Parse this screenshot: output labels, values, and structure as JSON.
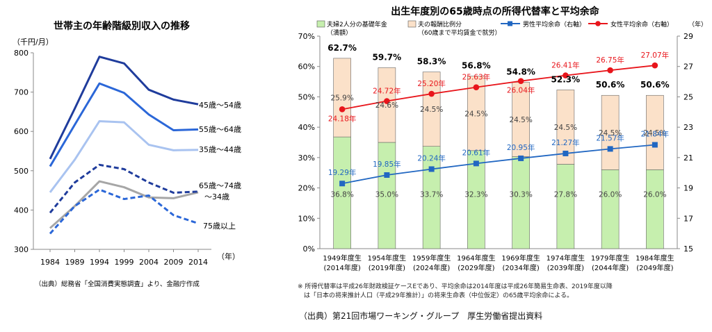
{
  "left_chart": {
    "title": "世帯主の年齢階級別収入の推移",
    "unit": "（千円/月）",
    "x_unit": "（年）",
    "source": "（出典）総務省「全国消費実態調査」より、金融庁作成",
    "chart_data": {
      "type": "line",
      "title": "世帯主の年齢階級別収入の推移",
      "ylabel": "（千円/月）",
      "xlabel": "（年）",
      "x": [
        "1984",
        "1989",
        "1994",
        "1999",
        "2004",
        "2009",
        "2014"
      ],
      "ylim": [
        300,
        800
      ],
      "yticks": [
        300,
        400,
        500,
        600,
        700,
        800
      ],
      "grid": false,
      "series": [
        {
          "name": "45歳～54歳",
          "color": "#1f3c9c",
          "dash": false,
          "values": [
            530,
            658,
            790,
            773,
            706,
            681,
            669
          ]
        },
        {
          "name": "55歳～64歳",
          "color": "#2b67d8",
          "dash": false,
          "values": [
            511,
            617,
            722,
            698,
            643,
            603,
            605
          ]
        },
        {
          "name": "35歳～44歳",
          "color": "#a9c3f0",
          "dash": false,
          "values": [
            445,
            528,
            626,
            623,
            566,
            552,
            553
          ]
        },
        {
          "name": "65歳～74歳",
          "color": "#1f3c9c",
          "dash": true,
          "values": [
            393,
            470,
            515,
            504,
            470,
            444,
            447
          ]
        },
        {
          "name": "～34歳",
          "color": "#a6a6a6",
          "dash": false,
          "values": [
            354,
            410,
            473,
            458,
            432,
            430,
            445
          ]
        },
        {
          "name": "75歳以上",
          "color": "#2b67d8",
          "dash": true,
          "values": [
            340,
            410,
            452,
            428,
            437,
            387,
            366
          ]
        }
      ]
    }
  },
  "right_chart": {
    "title": "出生年度別の65歳時点の所得代替率と平均余命",
    "legend": {
      "basic": "夫婦2人分の基礎年金",
      "basic_sub": "（満額）",
      "earnings": "夫の報酬比例分",
      "earnings_sub": "（60歳まで平均賃金で就労）",
      "male": "男性平均余命（右軸）",
      "female": "女性平均余命（右軸）"
    },
    "right_unit": "（年）",
    "footnote_1": "※ 所得代替率は平成26年財政検証ケースEであり、平均余命は2014年度は平成26年簡易生命表、2019年度以降",
    "footnote_2": "は「日本の将来推計人口（平成29年推計）」の将来生命表（中位仮定）の65歳平均余命による。",
    "source": "（出典）第21回市場ワーキング・グループ　厚生労働省提出資料",
    "chart_data": {
      "type": "bar",
      "title": "出生年度別の65歳時点の所得代替率と平均余命",
      "categories": [
        "1949年度生",
        "1954年度生",
        "1959年度生",
        "1964年度生",
        "1969年度生",
        "1974年度生",
        "1979年度生",
        "1984年度生"
      ],
      "sub_categories": [
        "(2014年度)",
        "(2019年度)",
        "(2024年度)",
        "(2029年度)",
        "(2034年度)",
        "(2039年度)",
        "(2044年度)",
        "(2049年度)"
      ],
      "ylim": [
        0,
        70
      ],
      "yticks": [
        "0%",
        "10%",
        "20%",
        "30%",
        "40%",
        "50%",
        "60%",
        "70%"
      ],
      "y2lim": [
        15,
        29
      ],
      "y2ticks": [
        "15",
        "17",
        "19",
        "21",
        "23",
        "25",
        "27",
        "29"
      ],
      "stacked": true,
      "totals": [
        "62.7%",
        "59.7%",
        "58.3%",
        "56.8%",
        "54.8%",
        "52.3%",
        "50.6%",
        "50.6%"
      ],
      "series": [
        {
          "name": "夫婦2人分の基礎年金",
          "color": "#c6efae",
          "axis": "left",
          "values": [
            36.8,
            35.0,
            33.7,
            32.3,
            30.3,
            27.8,
            26.0,
            26.0
          ],
          "labels": [
            "36.8%",
            "35.0%",
            "33.7%",
            "32.3%",
            "30.3%",
            "27.8%",
            "26.0%",
            "26.0%"
          ]
        },
        {
          "name": "夫の報酬比例分",
          "color": "#fbe1c9",
          "axis": "left",
          "values": [
            25.9,
            24.6,
            24.5,
            24.5,
            24.5,
            24.5,
            24.5,
            24.5
          ],
          "labels": [
            "25.9%",
            "24.6%",
            "24.5%",
            "24.5%",
            "24.5%",
            "24.5%",
            "24.5%",
            "24.5%"
          ]
        },
        {
          "name": "男性平均余命（右軸）",
          "color": "#2167c2",
          "axis": "right",
          "type": "line",
          "values": [
            19.29,
            19.85,
            20.24,
            20.61,
            20.95,
            21.27,
            21.57,
            21.84
          ],
          "labels": [
            "19.29年",
            "19.85年",
            "20.24年",
            "20.61年",
            "20.95年",
            "21.27年",
            "21.57年",
            "21.84年"
          ]
        },
        {
          "name": "女性平均余命（右軸）",
          "color": "#e8151b",
          "axis": "right",
          "type": "line",
          "values": [
            24.18,
            24.72,
            25.2,
            25.63,
            26.04,
            26.41,
            26.75,
            27.07
          ],
          "labels": [
            "24.18年",
            "24.72年",
            "25.20年",
            "25.63年",
            "26.04年",
            "26.41年",
            "26.75年",
            "27.07年"
          ]
        }
      ]
    }
  }
}
